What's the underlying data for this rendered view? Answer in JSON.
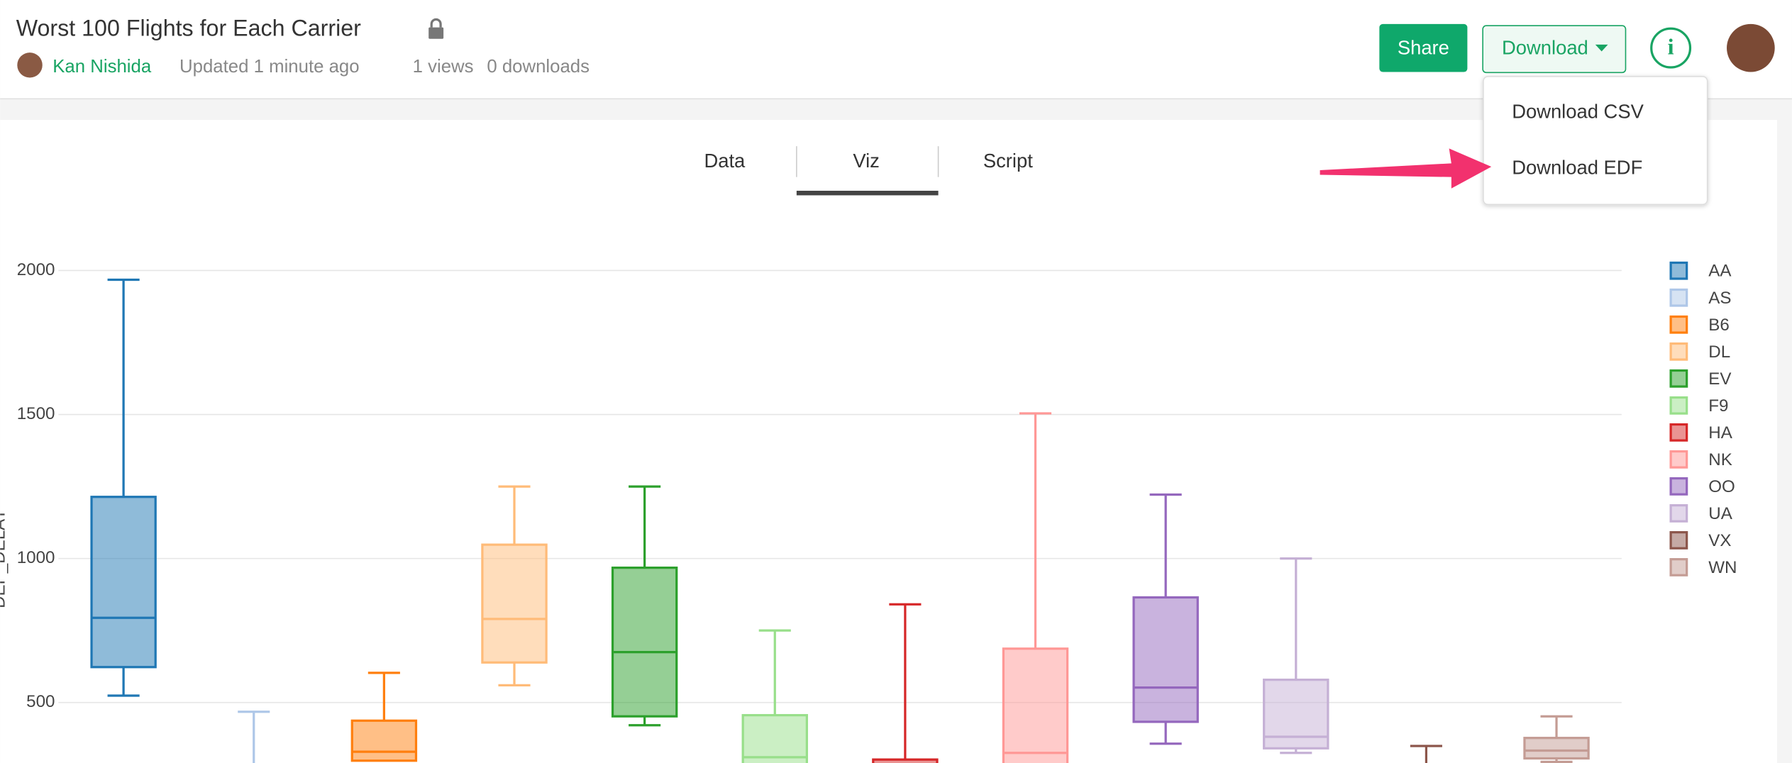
{
  "header": {
    "title": "Worst 100 Flights for Each Carrier",
    "author": "Kan Nishida",
    "updated": "Updated 1 minute ago",
    "views": "1 views",
    "downloads": "0 downloads"
  },
  "buttons": {
    "share": "Share",
    "download": "Download"
  },
  "tabs": [
    "Data",
    "Viz",
    "Script"
  ],
  "dropdown": [
    "Download CSV",
    "Download EDF"
  ],
  "chart_data": {
    "type": "box",
    "y_label": "DEP_DELAY",
    "ylim": [
      290,
      2150
    ],
    "yticks": [
      500,
      1000,
      1500,
      2000
    ],
    "grid": true,
    "series": [
      {
        "name": "AA",
        "color": "#1f77b4",
        "min": 524,
        "q1": 623,
        "median": 794,
        "q3": 1214,
        "max": 1968
      },
      {
        "name": "AS",
        "color": "#aec7e8",
        "min": null,
        "q1": null,
        "median": null,
        "q3": null,
        "max": 468
      },
      {
        "name": "B6",
        "color": "#ff7f0e",
        "min": null,
        "q1": 298,
        "median": 329,
        "q3": 437,
        "max": 603
      },
      {
        "name": "DL",
        "color": "#ffbb78",
        "min": 560,
        "q1": 639,
        "median": 790,
        "q3": 1048,
        "max": 1250
      },
      {
        "name": "EV",
        "color": "#2ca02c",
        "min": 421,
        "q1": 452,
        "median": 675,
        "q3": 968,
        "max": 1250
      },
      {
        "name": "F9",
        "color": "#98df8a",
        "min": null,
        "q1": null,
        "median": 310,
        "q3": 456,
        "max": 750
      },
      {
        "name": "HA",
        "color": "#d62728",
        "min": null,
        "q1": null,
        "median": null,
        "q3": 302,
        "max": 841
      },
      {
        "name": "NK",
        "color": "#ff9896",
        "min": null,
        "q1": null,
        "median": 325,
        "q3": 687,
        "max": 1504
      },
      {
        "name": "OO",
        "color": "#9467bd",
        "min": 357,
        "q1": 433,
        "median": 552,
        "q3": 865,
        "max": 1222
      },
      {
        "name": "UA",
        "color": "#c5b0d5",
        "min": 325,
        "q1": 341,
        "median": 381,
        "q3": 579,
        "max": 1000
      },
      {
        "name": "VX",
        "color": "#8c564b",
        "min": null,
        "q1": null,
        "median": null,
        "q3": null,
        "max": 349
      },
      {
        "name": "WN",
        "color": "#c49c94",
        "min": 294,
        "q1": 306,
        "median": 333,
        "q3": 377,
        "max": 452
      }
    ]
  }
}
